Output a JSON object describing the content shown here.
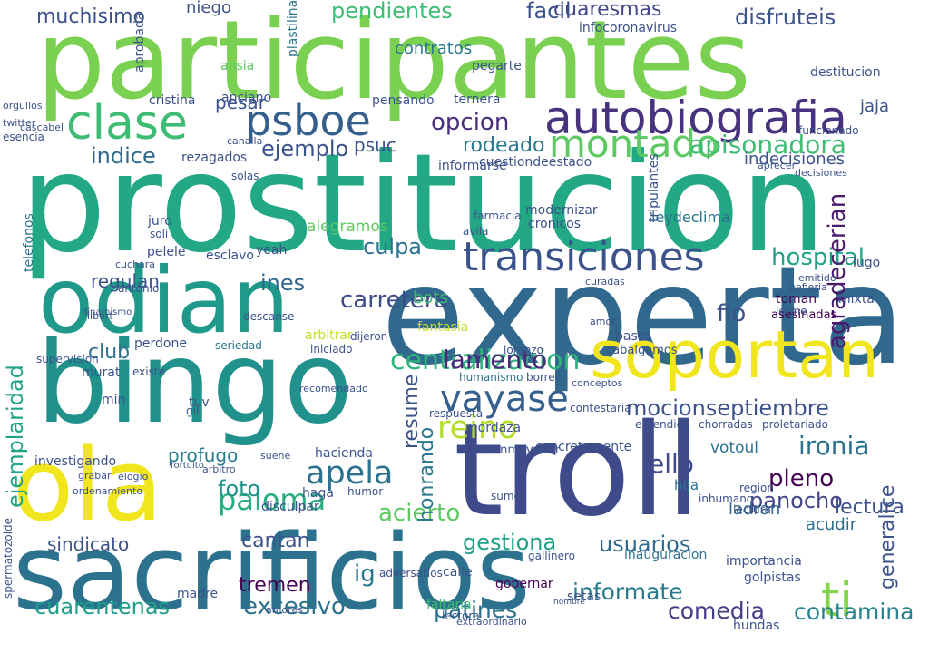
{
  "cloud": {
    "background": "#ffffff",
    "palette": [
      "#440154",
      "#3b528b",
      "#2c728e",
      "#21918c",
      "#28ae80",
      "#5ec962",
      "#addc30",
      "#fde725"
    ],
    "words": [
      {
        "text": "participantes",
        "color": "#7ad151"
      },
      {
        "text": "prostitucion",
        "color": "#22a884"
      },
      {
        "text": "experta",
        "color": "#31688e"
      },
      {
        "text": "odian",
        "color": "#1f9a8a"
      },
      {
        "text": "bingo",
        "color": "#21918c"
      },
      {
        "text": "troll",
        "color": "#3e4a89"
      },
      {
        "text": "sacrificios",
        "color": "#2c728e"
      },
      {
        "text": "ola",
        "color": "#f1e51d"
      },
      {
        "text": "soportan",
        "color": "#f1e51d"
      },
      {
        "text": "transiciones",
        "color": "#3b528b"
      },
      {
        "text": "autobiografia",
        "color": "#46327e"
      },
      {
        "text": "montado",
        "color": "#5ec962"
      },
      {
        "text": "clase",
        "color": "#3fbc73"
      },
      {
        "text": "psboe",
        "color": "#355f8d"
      },
      {
        "text": "vayase",
        "color": "#355f8d"
      },
      {
        "text": "centralizacion",
        "color": "#2fb47c"
      },
      {
        "text": "reino",
        "color": "#b5de2b"
      },
      {
        "text": "apela",
        "color": "#2c728e"
      },
      {
        "text": "paloma",
        "color": "#27ad81"
      },
      {
        "text": "ti",
        "color": "#84d44b"
      },
      {
        "text": "ejemplaridad",
        "color": "#20a386"
      },
      {
        "text": "apisonadora",
        "color": "#3fbc73"
      },
      {
        "text": "hospital",
        "color": "#20a386"
      },
      {
        "text": "agradecerian",
        "color": "#481a6c"
      },
      {
        "text": "ironia",
        "color": "#2c728e"
      },
      {
        "text": "mocionseptiembre",
        "color": "#3b528b"
      },
      {
        "text": "lamento",
        "color": "#482878"
      },
      {
        "text": "carretera",
        "color": "#3e4a89"
      },
      {
        "text": "sindicato",
        "color": "#3b528b"
      },
      {
        "text": "cuarentenas",
        "color": "#1f9e89"
      },
      {
        "text": "excesivo",
        "color": "#2c728e"
      },
      {
        "text": "patines",
        "color": "#2c728e"
      },
      {
        "text": "comedia",
        "color": "#433e85"
      },
      {
        "text": "contamina",
        "color": "#26828e"
      },
      {
        "text": "informate",
        "color": "#287c8e"
      },
      {
        "text": "panocho",
        "color": "#404688"
      },
      {
        "text": "usuarios",
        "color": "#31688e"
      },
      {
        "text": "gestiona",
        "color": "#1fa187"
      },
      {
        "text": "pleno",
        "color": "#440154"
      },
      {
        "text": "ello",
        "color": "#3e4a89"
      },
      {
        "text": "foto",
        "color": "#21918c"
      },
      {
        "text": "acierto",
        "color": "#5ec962"
      },
      {
        "text": "tremen",
        "color": "#440154"
      },
      {
        "text": "cantan",
        "color": "#3b528b"
      },
      {
        "text": "culpa",
        "color": "#2c728e"
      },
      {
        "text": "ejemplo",
        "color": "#3b528b"
      },
      {
        "text": "indice",
        "color": "#31688e"
      },
      {
        "text": "opcion",
        "color": "#472d7b"
      },
      {
        "text": "rodeado",
        "color": "#2a788e"
      },
      {
        "text": "pendientes",
        "color": "#3fbc73"
      },
      {
        "text": "facil",
        "color": "#3b528b"
      },
      {
        "text": "muchisimo",
        "color": "#3b528b"
      },
      {
        "text": "disfruteis",
        "color": "#3b528b"
      },
      {
        "text": "cuaresmas",
        "color": "#404688"
      },
      {
        "text": "contratos",
        "color": "#2a788e"
      },
      {
        "text": "regulan",
        "color": "#3b528b"
      },
      {
        "text": "ines",
        "color": "#31688e"
      },
      {
        "text": "club",
        "color": "#2c728e"
      },
      {
        "text": "profugo",
        "color": "#287c8e"
      },
      {
        "text": "generalice",
        "color": "#3b528b"
      },
      {
        "text": "fio",
        "color": "#3b528b"
      },
      {
        "text": "honrando",
        "color": "#2a788e"
      },
      {
        "text": "resume",
        "color": "#3b528b"
      },
      {
        "text": "indecisiones",
        "color": "#3b528b"
      },
      {
        "text": "psuc",
        "color": "#3b528b"
      },
      {
        "text": "niego",
        "color": "#3b528b"
      },
      {
        "text": "pesar",
        "color": "#3b528b"
      },
      {
        "text": "lectura",
        "color": "#3b528b"
      },
      {
        "text": "acudir",
        "color": "#2c728e"
      },
      {
        "text": "ladran",
        "color": "#31688e"
      },
      {
        "text": "jaja",
        "color": "#3b528b"
      },
      {
        "text": "ig",
        "color": "#2a788e"
      },
      {
        "text": "votoul",
        "color": "#2c728e"
      },
      {
        "text": "leydeclima",
        "color": "#2c728e"
      },
      {
        "text": "alegramos",
        "color": "#5ec962"
      },
      {
        "text": "bots",
        "color": "#3fbc73"
      },
      {
        "text": "hija",
        "color": "#2c728e"
      },
      {
        "text": "fantasia",
        "color": "#c8e020"
      },
      {
        "text": "seriedad",
        "color": "#2a788e"
      },
      {
        "text": "perdone",
        "color": "#3b528b"
      },
      {
        "text": "murat",
        "color": "#3b528b"
      },
      {
        "text": "existe",
        "color": "#3b528b"
      },
      {
        "text": "min",
        "color": "#3b528b"
      },
      {
        "text": "tuv",
        "color": "#3b528b"
      },
      {
        "text": "gil",
        "color": "#3b528b"
      },
      {
        "text": "investigando",
        "color": "#3b528b"
      },
      {
        "text": "haga",
        "color": "#3b528b"
      },
      {
        "text": "humor",
        "color": "#3b528b"
      },
      {
        "text": "madre",
        "color": "#3b528b"
      },
      {
        "text": "calle",
        "color": "#3b528b"
      },
      {
        "text": "gobernar",
        "color": "#440154"
      },
      {
        "text": "faltaria",
        "color": "#3fbc73"
      },
      {
        "text": "setas",
        "color": "#3b528b"
      },
      {
        "text": "importancia",
        "color": "#3b528b"
      },
      {
        "text": "hundas",
        "color": "#3b528b"
      },
      {
        "text": "golpistas",
        "color": "#3b528b"
      },
      {
        "text": "inauguracion",
        "color": "#2c728e"
      },
      {
        "text": "concretamente",
        "color": "#3b528b"
      },
      {
        "text": "conmovedor",
        "color": "#3b528b"
      },
      {
        "text": "mordaza",
        "color": "#3b528b"
      },
      {
        "text": "borrell",
        "color": "#3b528b"
      },
      {
        "text": "lorenzo",
        "color": "#3b528b"
      },
      {
        "text": "basta",
        "color": "#3b528b"
      },
      {
        "text": "cabalgamos",
        "color": "#3b528b"
      },
      {
        "text": "toman",
        "color": "#440154"
      },
      {
        "text": "mixta",
        "color": "#3b528b"
      },
      {
        "text": "asesinadas",
        "color": "#440154"
      },
      {
        "text": "humanismo",
        "color": "#2c728e"
      },
      {
        "text": "destitucion",
        "color": "#3b528b"
      },
      {
        "text": "informarse",
        "color": "#3b528b"
      },
      {
        "text": "pensando",
        "color": "#3b528b"
      },
      {
        "text": "anciano",
        "color": "#3b528b"
      },
      {
        "text": "cristina",
        "color": "#3b528b"
      },
      {
        "text": "aprobada",
        "color": "#3b528b"
      },
      {
        "text": "ansia",
        "color": "#5ec962"
      },
      {
        "text": "pegarte",
        "color": "#3b528b"
      },
      {
        "text": "plastilina",
        "color": "#2a788e"
      },
      {
        "text": "infocoronavirus",
        "color": "#3b528b"
      },
      {
        "text": "ternera",
        "color": "#3b528b"
      },
      {
        "text": "lugo",
        "color": "#3b528b"
      },
      {
        "text": "lerme",
        "color": "#3b528b"
      },
      {
        "text": "dinamismo",
        "color": "#3b528b"
      },
      {
        "text": "solas",
        "color": "#3b528b"
      },
      {
        "text": "rezagados",
        "color": "#3b528b"
      },
      {
        "text": "juro",
        "color": "#3b528b"
      },
      {
        "text": "soli",
        "color": "#3b528b"
      },
      {
        "text": "yeah",
        "color": "#3b528b"
      },
      {
        "text": "antonio",
        "color": "#3b528b"
      },
      {
        "text": "descanse",
        "color": "#3b528b"
      },
      {
        "text": "iniciado",
        "color": "#3b528b"
      },
      {
        "text": "arbitrar",
        "color": "#c8e020"
      },
      {
        "text": "dijeron",
        "color": "#3b528b"
      },
      {
        "text": "modernizar",
        "color": "#3b528b"
      },
      {
        "text": "cronicos",
        "color": "#3b528b"
      },
      {
        "text": "esencia",
        "color": "#3b528b"
      },
      {
        "text": "twitter",
        "color": "#3b528b"
      },
      {
        "text": "cascabel",
        "color": "#3b528b"
      },
      {
        "text": "orgullos",
        "color": "#3b528b"
      },
      {
        "text": "canalla",
        "color": "#3b528b"
      },
      {
        "text": "telefonos",
        "color": "#2c728e"
      },
      {
        "text": "supervision",
        "color": "#3b528b"
      },
      {
        "text": "libert",
        "color": "#3b528b"
      },
      {
        "text": "cuchara",
        "color": "#3b528b"
      },
      {
        "text": "esclavo",
        "color": "#3b528b"
      },
      {
        "text": "pelele",
        "color": "#3b528b"
      },
      {
        "text": "spermatozoide",
        "color": "#3b528b"
      },
      {
        "text": "recomendado",
        "color": "#3b528b"
      },
      {
        "text": "amores",
        "color": "#3b528b"
      },
      {
        "text": "nombre",
        "color": "#3b528b"
      },
      {
        "text": "extraordinario",
        "color": "#3b528b"
      },
      {
        "text": "ordenamiento",
        "color": "#3b528b"
      },
      {
        "text": "elogio",
        "color": "#3b528b"
      },
      {
        "text": "grabar",
        "color": "#3b528b"
      },
      {
        "text": "arbitro",
        "color": "#3b528b"
      },
      {
        "text": "fortuito",
        "color": "#3b528b"
      },
      {
        "text": "suene",
        "color": "#3b528b"
      },
      {
        "text": "hacienda",
        "color": "#3b528b"
      },
      {
        "text": "disculpar",
        "color": "#3b528b"
      },
      {
        "text": "sumo",
        "color": "#3b528b"
      },
      {
        "text": "adversarios",
        "color": "#3b528b"
      },
      {
        "text": "gallinero",
        "color": "#3b528b"
      },
      {
        "text": "lectora",
        "color": "#3b528b"
      },
      {
        "text": "entendido",
        "color": "#3b528b"
      },
      {
        "text": "chorradas",
        "color": "#3b528b"
      },
      {
        "text": "proletariado",
        "color": "#3b528b"
      },
      {
        "text": "region",
        "color": "#3b528b"
      },
      {
        "text": "inhumano",
        "color": "#3b528b"
      },
      {
        "text": "conceptos",
        "color": "#3b528b"
      },
      {
        "text": "lectura",
        "color": "#3b528b"
      },
      {
        "text": "contestaria",
        "color": "#3b528b"
      },
      {
        "text": "respuesta",
        "color": "#3b528b"
      },
      {
        "text": "amor",
        "color": "#3b528b"
      },
      {
        "text": "curadas",
        "color": "#3b528b"
      },
      {
        "text": "avila",
        "color": "#3b528b"
      },
      {
        "text": "farmacia",
        "color": "#3b528b"
      },
      {
        "text": "cuestiondeestado",
        "color": "#3b528b"
      },
      {
        "text": "decisiones",
        "color": "#3b528b"
      },
      {
        "text": "funcionado",
        "color": "#3b528b"
      },
      {
        "text": "tripulantes",
        "color": "#3b528b"
      },
      {
        "text": "emitido",
        "color": "#3b528b"
      },
      {
        "text": "pefieria",
        "color": "#3b528b"
      },
      {
        "text": "aprecer",
        "color": "#3b528b"
      },
      {
        "text": "espermatozoide",
        "color": "#3b528b"
      }
    ]
  }
}
